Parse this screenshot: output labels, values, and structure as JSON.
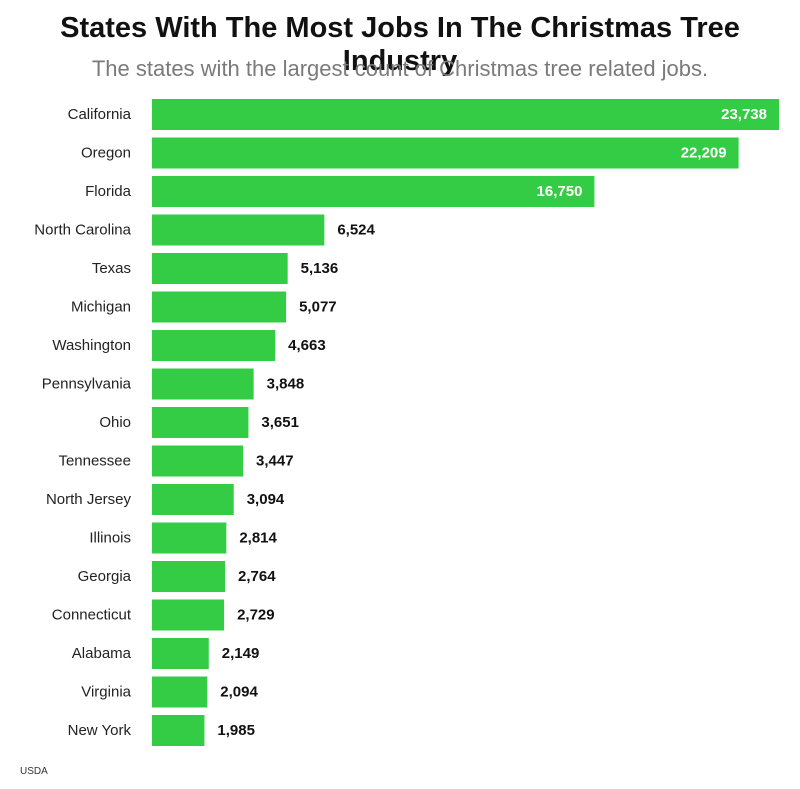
{
  "header": {
    "title": "States With The Most Jobs In The Christmas Tree Industry",
    "subtitle": "The states with the largest count of Christmas tree related jobs."
  },
  "footer": {
    "source": "USDA"
  },
  "colors": {
    "bar": "#33cc44",
    "label_inside": "#ffffff",
    "label_outside": "#111111"
  },
  "chart_data": {
    "type": "bar",
    "orientation": "horizontal",
    "title": "States With The Most Jobs In The Christmas Tree Industry",
    "subtitle": "The states with the largest count of Christmas tree related jobs.",
    "categories": [
      "California",
      "Oregon",
      "Florida",
      "North Carolina",
      "Texas",
      "Michigan",
      "Washington",
      "Pennsylvania",
      "Ohio",
      "Tennessee",
      "North Jersey",
      "Illinois",
      "Georgia",
      "Connecticut",
      "Alabama",
      "Virginia",
      "New York"
    ],
    "values": [
      23738,
      22209,
      16750,
      6524,
      5136,
      5077,
      4663,
      3848,
      3651,
      3447,
      3094,
      2814,
      2764,
      2729,
      2149,
      2094,
      1985
    ],
    "value_labels": [
      "23,738",
      "22,209",
      "16,750",
      "6,524",
      "5,136",
      "5,077",
      "4,663",
      "3,848",
      "3,651",
      "3,447",
      "3,094",
      "2,814",
      "2,764",
      "2,729",
      "2,149",
      "2,094",
      "1,985"
    ],
    "xlim": [
      0,
      23738
    ],
    "grid": false,
    "legend": "none",
    "xlabel": "",
    "ylabel": ""
  }
}
